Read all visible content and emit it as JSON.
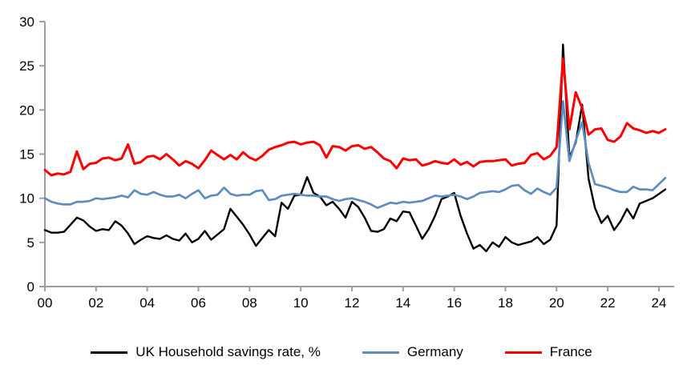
{
  "chart_data": {
    "type": "line",
    "frequency": "quarterly",
    "x_start_year": 2000,
    "x_end": "2024 Q2",
    "ylim": [
      0,
      30
    ],
    "grid": false,
    "legend_position": "bottom",
    "y_tick_labels": [
      "30",
      "25",
      "20",
      "15",
      "10",
      "5",
      "0"
    ],
    "x_tick_labels": [
      "00",
      "02",
      "04",
      "06",
      "08",
      "10",
      "12",
      "14",
      "16",
      "18",
      "20",
      "22",
      "24"
    ],
    "axis_color": "#9e9e9e",
    "series": [
      {
        "name": "UK Household savings rate, %",
        "color": "#000000",
        "values": [
          6.4,
          6.1,
          6.1,
          6.2,
          7.0,
          7.8,
          7.5,
          6.8,
          6.3,
          6.5,
          6.4,
          7.4,
          6.9,
          6.0,
          4.8,
          5.3,
          5.7,
          5.5,
          5.4,
          5.8,
          5.4,
          5.2,
          6.0,
          5.0,
          5.4,
          6.3,
          5.3,
          5.9,
          6.5,
          8.8,
          7.9,
          7.0,
          5.9,
          4.6,
          5.5,
          6.4,
          5.7,
          9.5,
          8.8,
          10.3,
          10.4,
          12.4,
          10.6,
          10.2,
          9.2,
          9.6,
          8.8,
          7.8,
          9.6,
          9.0,
          7.8,
          6.3,
          6.2,
          6.5,
          7.7,
          7.4,
          8.5,
          8.4,
          6.9,
          5.4,
          6.5,
          8.0,
          9.9,
          10.2,
          10.6,
          8.0,
          6.0,
          4.3,
          4.7,
          4.0,
          5.0,
          4.5,
          5.6,
          5.0,
          4.7,
          4.9,
          5.1,
          5.6,
          4.8,
          5.3,
          6.9,
          27.4,
          14.6,
          16.3,
          20.6,
          12.2,
          8.9,
          7.2,
          8.0,
          6.4,
          7.4,
          8.8,
          7.7,
          9.4,
          9.7,
          10.0,
          10.5,
          11.0
        ]
      },
      {
        "name": "Germany",
        "color": "#5E8CC0",
        "values": [
          10.0,
          9.6,
          9.4,
          9.3,
          9.3,
          9.6,
          9.6,
          9.7,
          10.0,
          9.9,
          10.0,
          10.1,
          10.3,
          10.1,
          10.9,
          10.5,
          10.4,
          10.7,
          10.4,
          10.2,
          10.2,
          10.4,
          10.0,
          10.5,
          10.9,
          10.0,
          10.3,
          10.4,
          11.2,
          10.5,
          10.3,
          10.4,
          10.4,
          10.8,
          10.9,
          9.8,
          9.9,
          10.3,
          10.4,
          10.5,
          10.4,
          10.3,
          10.3,
          10.2,
          10.2,
          9.9,
          9.7,
          9.9,
          10.0,
          9.8,
          9.6,
          9.3,
          8.9,
          9.2,
          9.5,
          9.4,
          9.6,
          9.5,
          9.6,
          9.7,
          10.0,
          10.3,
          10.2,
          10.3,
          10.4,
          10.2,
          9.9,
          10.2,
          10.6,
          10.7,
          10.8,
          10.7,
          11.0,
          11.4,
          11.5,
          10.9,
          10.5,
          11.1,
          10.7,
          10.4,
          11.2,
          21.0,
          14.2,
          16.5,
          18.6,
          14.0,
          11.6,
          11.4,
          11.2,
          10.9,
          10.7,
          10.7,
          11.3,
          11.0,
          11.0,
          10.9,
          11.6,
          12.3
        ]
      },
      {
        "name": "France",
        "color": "#FE0000",
        "values": [
          13.2,
          12.6,
          12.8,
          12.7,
          13.0,
          15.3,
          13.3,
          13.9,
          14.0,
          14.5,
          14.6,
          14.3,
          14.5,
          16.1,
          13.9,
          14.1,
          14.7,
          14.8,
          14.4,
          15.0,
          14.4,
          13.7,
          14.2,
          13.9,
          13.4,
          14.3,
          15.4,
          14.9,
          14.4,
          14.9,
          14.4,
          15.2,
          14.6,
          14.3,
          14.8,
          15.5,
          15.8,
          16.0,
          16.3,
          16.4,
          16.1,
          16.3,
          16.4,
          16.0,
          14.6,
          15.9,
          15.8,
          15.4,
          15.9,
          16.0,
          15.6,
          15.8,
          15.2,
          14.5,
          14.2,
          13.4,
          14.5,
          14.3,
          14.4,
          13.7,
          13.9,
          14.2,
          14.0,
          13.9,
          14.4,
          13.8,
          14.1,
          13.6,
          14.1,
          14.2,
          14.2,
          14.3,
          14.4,
          13.7,
          13.9,
          14.0,
          14.9,
          15.1,
          14.4,
          14.8,
          15.8,
          25.8,
          17.8,
          22.0,
          20.2,
          17.2,
          17.8,
          17.9,
          16.6,
          16.4,
          17.0,
          18.5,
          17.9,
          17.7,
          17.4,
          17.6,
          17.4,
          17.8
        ]
      }
    ]
  },
  "legend": {
    "items": [
      {
        "label": "UK Household savings rate, %"
      },
      {
        "label": "Germany"
      },
      {
        "label": "France"
      }
    ]
  }
}
